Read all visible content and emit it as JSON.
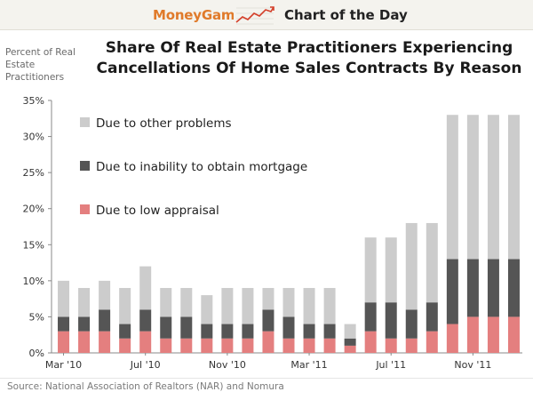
{
  "header": {
    "brand": "MoneyGame",
    "section": "Chart of the Day",
    "icon": "trend-chart-icon"
  },
  "chart_data": {
    "type": "bar",
    "stacked": true,
    "title_line1": "Share Of Real Estate Practitioners Experiencing",
    "title_line2": "Cancellations Of Home Sales Contracts By Reason",
    "ylabel": "Percent of Real Estate Practitioners",
    "ylim": [
      0,
      35
    ],
    "yticks": [
      "0%",
      "5%",
      "10%",
      "15%",
      "20%",
      "25%",
      "30%",
      "35%"
    ],
    "ytick_values": [
      0,
      5,
      10,
      15,
      20,
      25,
      30,
      35
    ],
    "x_tick_labels": [
      {
        "index": 0,
        "label": "Mar '10"
      },
      {
        "index": 4,
        "label": "Jul '10"
      },
      {
        "index": 8,
        "label": "Nov '10"
      },
      {
        "index": 12,
        "label": "Mar '11"
      },
      {
        "index": 16,
        "label": "Jul '11"
      },
      {
        "index": 20,
        "label": "Nov '11"
      }
    ],
    "n_bars": 23,
    "series": [
      {
        "name": "Due to low appraisal",
        "color": "#e47f7f",
        "values": [
          3,
          3,
          3,
          2,
          3,
          2,
          2,
          2,
          2,
          2,
          3,
          2,
          2,
          2,
          1,
          3,
          2,
          2,
          3,
          4,
          5,
          5,
          5
        ]
      },
      {
        "name": "Due to inability to obtain mortgage",
        "color": "#555555",
        "values": [
          2,
          2,
          3,
          2,
          3,
          3,
          3,
          2,
          2,
          2,
          3,
          3,
          2,
          2,
          1,
          4,
          5,
          4,
          4,
          9,
          8,
          8,
          8
        ]
      },
      {
        "name": "Due to other problems",
        "color": "#cccccc",
        "values": [
          5,
          4,
          4,
          5,
          6,
          4,
          4,
          4,
          5,
          5,
          3,
          4,
          5,
          5,
          2,
          9,
          9,
          12,
          11,
          20,
          20,
          20,
          20
        ]
      }
    ],
    "legend": [
      {
        "label": "Due to other problems",
        "color": "#cccccc"
      },
      {
        "label": "Due to inability to obtain mortgage",
        "color": "#555555"
      },
      {
        "label": "Due to low appraisal",
        "color": "#e47f7f"
      }
    ],
    "legend_position": "top-left"
  },
  "footer": {
    "source": "Source: National Association of Realtors (NAR) and Nomura"
  }
}
